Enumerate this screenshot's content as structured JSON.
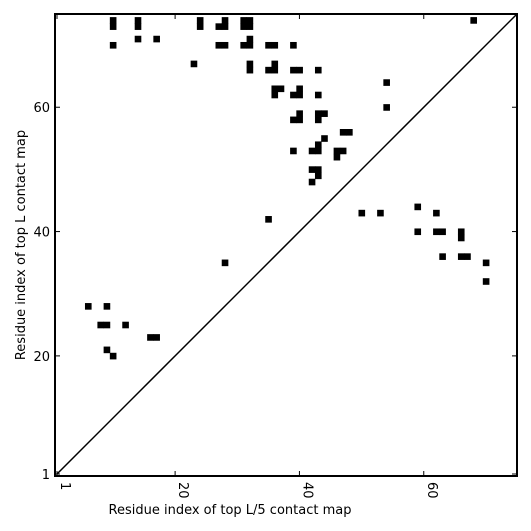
{
  "chart_data": {
    "type": "heatmap",
    "title": "",
    "xlabel": "Residue index of top L/5 contact map",
    "ylabel": "Residue index of top L contact map",
    "xlim": [
      1,
      75
    ],
    "ylim": [
      1,
      75
    ],
    "x_ticks": [
      {
        "value": 1,
        "label": "1"
      },
      {
        "value": 20,
        "label": "20"
      },
      {
        "value": 40,
        "label": "40"
      },
      {
        "value": 60,
        "label": "60"
      }
    ],
    "y_ticks": [
      {
        "value": 1,
        "label": "1"
      },
      {
        "value": 20,
        "label": "20"
      },
      {
        "value": 40,
        "label": "40"
      },
      {
        "value": 60,
        "label": "60"
      }
    ],
    "diagonal": true,
    "cell_color": "#000000",
    "upper_triangle_contacts": [
      [
        10,
        74
      ],
      [
        10,
        73
      ],
      [
        14,
        74
      ],
      [
        14,
        73
      ],
      [
        24,
        74
      ],
      [
        24,
        73
      ],
      [
        27,
        73
      ],
      [
        28,
        74
      ],
      [
        28,
        73
      ],
      [
        31,
        74
      ],
      [
        31,
        73
      ],
      [
        32,
        74
      ],
      [
        32,
        73
      ],
      [
        68,
        74
      ],
      [
        10,
        70
      ],
      [
        14,
        71
      ],
      [
        17,
        71
      ],
      [
        27,
        70
      ],
      [
        28,
        70
      ],
      [
        31,
        70
      ],
      [
        32,
        71
      ],
      [
        32,
        70
      ],
      [
        39,
        70
      ],
      [
        23,
        67
      ],
      [
        32,
        67
      ],
      [
        32,
        66
      ],
      [
        35,
        66
      ],
      [
        36,
        67
      ],
      [
        36,
        66
      ],
      [
        39,
        66
      ],
      [
        40,
        66
      ],
      [
        43,
        66
      ],
      [
        35,
        70
      ],
      [
        36,
        70
      ],
      [
        54,
        64
      ],
      [
        36,
        63
      ],
      [
        37,
        63
      ],
      [
        36,
        62
      ],
      [
        39,
        62
      ],
      [
        40,
        63
      ],
      [
        40,
        62
      ],
      [
        43,
        62
      ],
      [
        54,
        60
      ],
      [
        40,
        59
      ],
      [
        39,
        58
      ],
      [
        40,
        58
      ],
      [
        43,
        59
      ],
      [
        44,
        59
      ],
      [
        43,
        58
      ],
      [
        47,
        56
      ],
      [
        48,
        56
      ],
      [
        44,
        55
      ],
      [
        39,
        53
      ],
      [
        42,
        53
      ],
      [
        43,
        54
      ],
      [
        43,
        53
      ],
      [
        46,
        53
      ],
      [
        47,
        53
      ],
      [
        46,
        52
      ],
      [
        42,
        50
      ],
      [
        43,
        50
      ],
      [
        43,
        49
      ],
      [
        42,
        48
      ],
      [
        50,
        43
      ],
      [
        53,
        43
      ],
      [
        59,
        44
      ],
      [
        62,
        43
      ],
      [
        59,
        40
      ],
      [
        62,
        40
      ],
      [
        63,
        40
      ],
      [
        66,
        40
      ],
      [
        66,
        39
      ],
      [
        63,
        36
      ],
      [
        66,
        36
      ],
      [
        67,
        36
      ],
      [
        70,
        35
      ],
      [
        70,
        32
      ]
    ],
    "lower_triangle_contacts": [
      [
        35,
        42
      ],
      [
        28,
        35
      ],
      [
        6,
        28
      ],
      [
        9,
        28
      ],
      [
        8,
        25
      ],
      [
        9,
        25
      ],
      [
        12,
        25
      ],
      [
        16,
        23
      ],
      [
        17,
        23
      ],
      [
        9,
        21
      ],
      [
        10,
        20
      ]
    ]
  }
}
